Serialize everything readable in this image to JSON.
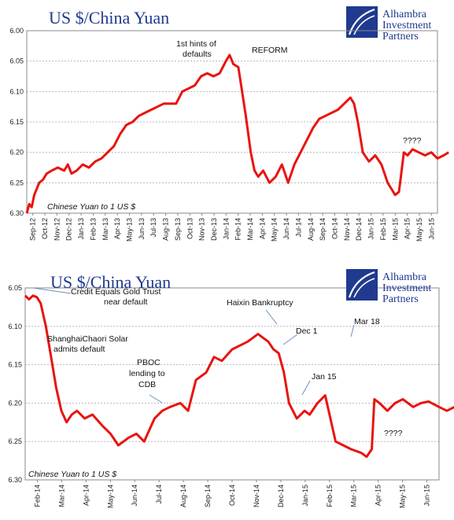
{
  "logo": {
    "line1": "Alhambra",
    "line2": "Investment",
    "line3": "Partners"
  },
  "colors": {
    "series": "#e8140f",
    "title": "#1f3a8f",
    "grid": "#b8b8b8",
    "annotation_arrow": "#6a8ec5"
  },
  "chart_data": [
    {
      "type": "line",
      "title": "US $/China Yuan",
      "series_label": "Chinese Yuan to 1 US $",
      "ylim": [
        6.3,
        6.0
      ],
      "y_inverted": true,
      "yticks": [
        "6.00",
        "6.05",
        "6.10",
        "6.15",
        "6.20",
        "6.25",
        "6.30"
      ],
      "grid": true,
      "x_categories": [
        "Sep-12",
        "Oct-12",
        "Nov-12",
        "Dec-12",
        "Jan-13",
        "Feb-13",
        "Mar-13",
        "Apr-13",
        "May-13",
        "Jun-13",
        "Jul-13",
        "Aug-13",
        "Sep-13",
        "Oct-13",
        "Nov-13",
        "Dec-13",
        "Jan-14",
        "Feb-14",
        "Mar-14",
        "Apr-14",
        "May-14",
        "Jun-14",
        "Jul-14",
        "Aug-14",
        "Sep-14",
        "Oct-14",
        "Nov-14",
        "Dec-14",
        "Jan-15",
        "Feb-15",
        "Mar-15",
        "Apr-15",
        "May-15",
        "Jun-15"
      ],
      "series": [
        {
          "x": [
            0,
            0.2,
            0.4,
            0.6,
            0.8,
            1,
            1.3,
            1.6,
            2,
            2.5,
            3,
            3.3,
            3.6,
            4,
            4.5,
            5,
            5.5,
            6,
            6.5,
            7,
            7.5,
            8,
            8.5,
            9,
            9.5,
            10,
            10.5,
            11,
            11.5,
            12,
            12.5,
            13,
            13.5,
            14,
            14.5,
            15,
            15.5,
            16,
            16.3,
            16.6,
            17,
            17.3,
            17.6,
            18,
            18.3,
            18.6,
            19,
            19.5,
            20,
            20.5,
            21,
            21.5,
            22,
            22.5,
            23,
            23.5,
            24,
            24.5,
            25,
            25.5,
            26,
            26.3,
            26.6,
            27,
            27.5,
            28,
            28.5,
            29,
            29.3,
            29.6,
            29.9,
            30,
            30.3,
            30.6,
            31,
            31.5,
            32,
            32.5,
            33,
            33.5,
            33.9
          ],
          "y": [
            6.3,
            6.285,
            6.29,
            6.27,
            6.26,
            6.25,
            6.245,
            6.235,
            6.23,
            6.225,
            6.23,
            6.22,
            6.235,
            6.23,
            6.22,
            6.225,
            6.215,
            6.21,
            6.2,
            6.19,
            6.17,
            6.155,
            6.15,
            6.14,
            6.135,
            6.13,
            6.125,
            6.12,
            6.12,
            6.12,
            6.1,
            6.095,
            6.09,
            6.075,
            6.07,
            6.075,
            6.07,
            6.05,
            6.04,
            6.055,
            6.06,
            6.1,
            6.14,
            6.2,
            6.23,
            6.24,
            6.23,
            6.25,
            6.24,
            6.22,
            6.25,
            6.22,
            6.2,
            6.18,
            6.16,
            6.145,
            6.14,
            6.135,
            6.13,
            6.12,
            6.11,
            6.12,
            6.15,
            6.2,
            6.215,
            6.205,
            6.22,
            6.25,
            6.26,
            6.27,
            6.265,
            6.25,
            6.2,
            6.205,
            6.195,
            6.2,
            6.205,
            6.2,
            6.21,
            6.205,
            6.2
          ]
        }
      ],
      "annotations": [
        {
          "text_lines": [
            "1st hints of",
            "defaults"
          ]
        },
        {
          "text_lines": [
            "REFORM"
          ]
        },
        {
          "text_lines": [
            "????"
          ]
        }
      ]
    },
    {
      "type": "line",
      "title": "US $/China Yuan",
      "series_label": "Chinese Yuan to 1 US $",
      "ylim": [
        6.3,
        6.05
      ],
      "y_inverted": true,
      "yticks": [
        "6.05",
        "6.10",
        "6.15",
        "6.20",
        "6.25",
        "6.30"
      ],
      "grid": true,
      "x_categories": [
        "Feb-14",
        "Mar-14",
        "Apr-14",
        "May-14",
        "Jun-14",
        "Jul-14",
        "Aug-14",
        "Sep-14",
        "Oct-14",
        "Nov-14",
        "Dec-14",
        "Jan-15",
        "Feb-15",
        "Mar-15",
        "Apr-15",
        "May-15",
        "Jun-15"
      ],
      "series": [
        {
          "x": [
            0,
            0.15,
            0.3,
            0.45,
            0.6,
            0.8,
            1,
            1.2,
            1.4,
            1.6,
            1.8,
            2,
            2.3,
            2.6,
            3,
            3.3,
            3.6,
            4,
            4.3,
            4.6,
            5,
            5.3,
            5.6,
            6,
            6.3,
            6.6,
            7,
            7.3,
            7.6,
            8,
            8.3,
            8.6,
            9,
            9.2,
            9.4,
            9.6,
            9.8,
            10,
            10.2,
            10.5,
            10.8,
            11,
            11.3,
            11.6,
            12,
            12.3,
            12.6,
            13,
            13.2,
            13.4,
            13.5,
            13.7,
            14,
            14.3,
            14.6,
            15,
            15.3,
            15.6,
            16,
            16.3,
            16.6,
            16.9
          ],
          "y": [
            6.06,
            6.065,
            6.06,
            6.062,
            6.07,
            6.1,
            6.14,
            6.18,
            6.21,
            6.225,
            6.215,
            6.21,
            6.22,
            6.215,
            6.23,
            6.24,
            6.255,
            6.245,
            6.24,
            6.25,
            6.22,
            6.21,
            6.205,
            6.2,
            6.21,
            6.17,
            6.16,
            6.14,
            6.145,
            6.13,
            6.125,
            6.12,
            6.11,
            6.115,
            6.12,
            6.13,
            6.135,
            6.16,
            6.2,
            6.22,
            6.21,
            6.215,
            6.2,
            6.19,
            6.25,
            6.255,
            6.26,
            6.265,
            6.27,
            6.26,
            6.195,
            6.2,
            6.21,
            6.2,
            6.195,
            6.205,
            6.2,
            6.198,
            6.205,
            6.21,
            6.205,
            6.2
          ]
        }
      ],
      "annotations": [
        {
          "text_lines": [
            "Credit Equals Gold Trust",
            "near default"
          ]
        },
        {
          "text_lines": [
            "ShanghaiChaori Solar",
            "admits default"
          ]
        },
        {
          "text_lines": [
            "PBOC",
            "lending to",
            "CDB"
          ]
        },
        {
          "text_lines": [
            "Haixin Bankruptcy"
          ]
        },
        {
          "text_lines": [
            "Dec 1"
          ]
        },
        {
          "text_lines": [
            "Jan 15"
          ]
        },
        {
          "text_lines": [
            "Mar 18"
          ]
        },
        {
          "text_lines": [
            "????"
          ]
        }
      ]
    }
  ]
}
